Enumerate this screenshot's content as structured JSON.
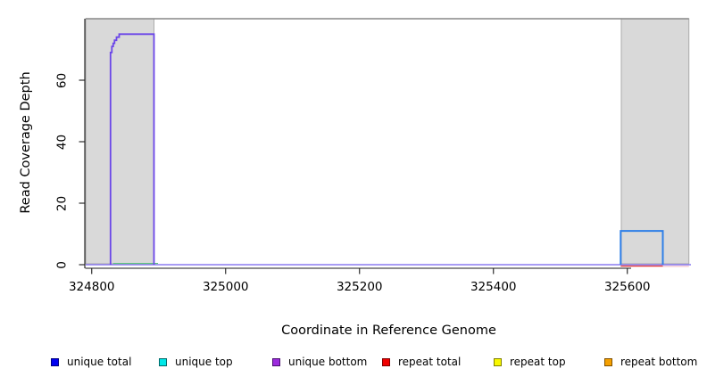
{
  "chart_data": {
    "type": "line",
    "title": "",
    "xlabel": "Coordinate in Reference Genome",
    "ylabel": "Read Coverage Depth",
    "xlim": [
      324791,
      325695
    ],
    "ylim": [
      0,
      80
    ],
    "x_ticks": [
      324800,
      325000,
      325200,
      325400,
      325600
    ],
    "y_ticks": [
      0,
      20,
      40,
      60
    ],
    "grid": false,
    "legend_position": "bottom",
    "shaded_regions": [
      {
        "name": "left-shaded-region",
        "x0": 324791,
        "x1": 324893
      },
      {
        "name": "right-shaded-region",
        "x0": 325591,
        "x1": 325692
      }
    ],
    "top_boundary_line": {
      "y": 80,
      "x0": 324791,
      "x1": 325692,
      "color": "#878787"
    },
    "series": [
      {
        "name": "zero-coverage-baseline",
        "color": "#8b7cf0",
        "width": 1.6,
        "points": [
          [
            324791,
            0
          ],
          [
            325695,
            0
          ]
        ]
      },
      {
        "name": "repeat-total-segment",
        "color": "#e23c3c",
        "width": 1.4,
        "points": [
          [
            325590,
            -0.45
          ],
          [
            325653,
            -0.45
          ]
        ]
      },
      {
        "name": "repeat-total-faint-tail",
        "color": "#f2b4be",
        "width": 1.0,
        "points": [
          [
            325653,
            -0.55
          ],
          [
            325692,
            -0.55
          ]
        ]
      },
      {
        "name": "green-baseline-overlap-segment",
        "color": "#5fc67e",
        "width": 1.1,
        "points": [
          [
            324832,
            0.4
          ],
          [
            324899,
            0.4
          ]
        ]
      },
      {
        "name": "unique-coverage-left-peak",
        "color": "#6b46e8",
        "width": 1.8,
        "points": [
          [
            324828,
            0
          ],
          [
            324828,
            69
          ],
          [
            324830,
            69
          ],
          [
            324830,
            71
          ],
          [
            324832,
            71
          ],
          [
            324832,
            72
          ],
          [
            324834,
            72
          ],
          [
            324834,
            73
          ],
          [
            324837,
            73
          ],
          [
            324837,
            74
          ],
          [
            324841,
            74
          ],
          [
            324841,
            75
          ],
          [
            324893,
            75
          ],
          [
            324893,
            0
          ]
        ]
      },
      {
        "name": "unique-coverage-right-box",
        "color": "#2e7fe8",
        "width": 2.0,
        "points": [
          [
            325590,
            0
          ],
          [
            325590,
            11
          ],
          [
            325653,
            11
          ],
          [
            325653,
            0
          ]
        ]
      }
    ],
    "legend": [
      {
        "label": "unique total",
        "fill": "#0000f0",
        "border": "#000080"
      },
      {
        "label": "unique top",
        "fill": "#00e8e8",
        "border": "#006868"
      },
      {
        "label": "unique bottom",
        "fill": "#9c2bdd",
        "border": "#4a1070"
      },
      {
        "label": "repeat total",
        "fill": "#f00000",
        "border": "#800000"
      },
      {
        "label": "repeat top",
        "fill": "#f8f800",
        "border": "#808000"
      },
      {
        "label": "repeat bottom",
        "fill": "#f5a000",
        "border": "#805000"
      }
    ],
    "colors": {
      "background": "#ffffff",
      "shade_fill": "#d9d9d9",
      "shade_border": "#a6a6a6",
      "axis": "#1a1a1a"
    }
  }
}
